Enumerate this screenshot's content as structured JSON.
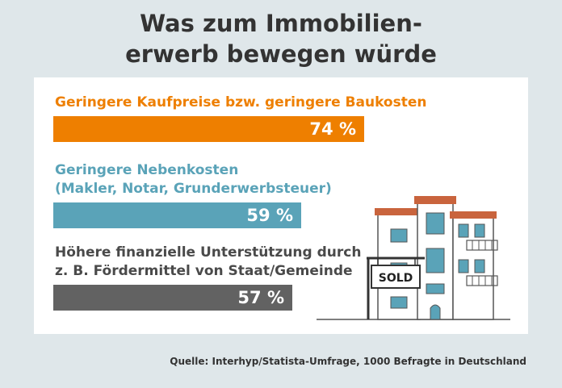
{
  "title_lines": [
    "Was zum Immobilien-",
    "erwerb bewegen würde"
  ],
  "chart_data": {
    "type": "bar",
    "orientation": "horizontal",
    "categories": [
      [
        "Geringere Kaufpreise bzw. geringere Baukosten"
      ],
      [
        "Geringere Nebenkosten",
        "(Makler, Notar, Grunderwerbsteuer)"
      ],
      [
        "Höhere finanzielle Unterstützung durch",
        "z. B. Fördermittel von Staat/Gemeinde"
      ]
    ],
    "values": [
      74,
      59,
      57
    ],
    "value_labels": [
      "74 %",
      "59 %",
      "57 %"
    ],
    "unit": "%",
    "xlim": [
      0,
      100
    ],
    "colors": [
      "#ee7f00",
      "#5aa3b8",
      "#626262"
    ],
    "label_colors": [
      "#ee7f00",
      "#5aa3b8",
      "#4a4a4a"
    ],
    "grid": false,
    "legend": "none"
  },
  "illustration": {
    "sign_text": "SOLD",
    "icon": "house-for-sale-icon"
  },
  "source": "Quelle: Interhyp/Statista-Umfrage, 1000 Befragte in Deutschland",
  "colors": {
    "background": "#dfe7ea",
    "panel": "#ffffff",
    "title": "#333333"
  }
}
